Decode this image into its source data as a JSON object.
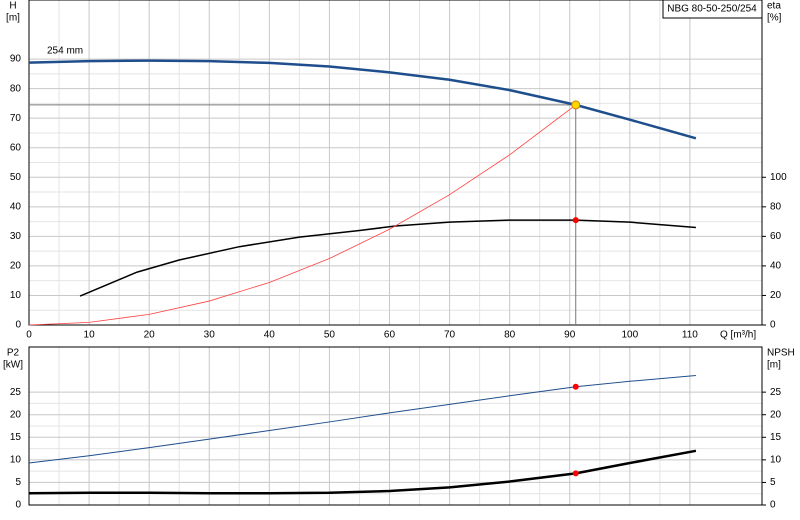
{
  "chart_data": [
    {
      "type": "line",
      "title": "NBG 80-50-250/254",
      "annotation": "254 mm",
      "xlabel": "Q [m³/h]",
      "ylabel": "H",
      "yunit": "[m]",
      "y2label": "eta",
      "y2unit": "[%]",
      "xlim": [
        0,
        122
      ],
      "xticks": [
        0,
        10,
        20,
        30,
        40,
        50,
        60,
        70,
        80,
        90,
        100,
        110
      ],
      "ylim": [
        0,
        110
      ],
      "yticks": [
        0,
        10,
        20,
        30,
        40,
        50,
        60,
        70,
        80,
        90
      ],
      "y2lim": [
        0,
        220
      ],
      "y2ticks": [
        0,
        20,
        40,
        60,
        80,
        100
      ],
      "grid": true,
      "crosshair": true,
      "series": [
        {
          "color": "#1f4e8c",
          "axis": "y",
          "x": [
            0,
            10,
            20,
            30,
            40,
            50,
            60,
            70,
            80,
            91,
            100,
            111
          ],
          "values": [
            88.8,
            89.3,
            89.5,
            89.3,
            88.7,
            87.5,
            85.5,
            83,
            79.5,
            74.5,
            69.5,
            63.2
          ]
        },
        {
          "color": "#000000",
          "axis": "y2",
          "x": [
            8.5,
            18,
            25,
            35,
            45,
            55,
            61,
            70,
            80,
            91,
            100,
            111
          ],
          "values": [
            19.6,
            35.8,
            44,
            53,
            59.5,
            64,
            67,
            69.6,
            71,
            71,
            69.6,
            66
          ]
        },
        {
          "color": "#ff4040",
          "axis": "y",
          "x": [
            0,
            10,
            20,
            30,
            40,
            50,
            60,
            70,
            80,
            91
          ],
          "values": [
            0,
            0.9,
            3.6,
            8.1,
            14.4,
            22.5,
            32.4,
            44.1,
            57.6,
            74.5
          ]
        }
      ],
      "points": [
        {
          "x": 91,
          "value": 74.5,
          "color": "#ffd700",
          "axis": "y"
        },
        {
          "x": 91,
          "value": 71,
          "color": "#ff0000",
          "axis": "y2"
        }
      ]
    },
    {
      "type": "line",
      "ylabel": "P2",
      "yunit": "[kW]",
      "y2label": "NPSH",
      "y2unit": "[m]",
      "xlim": [
        0,
        122
      ],
      "xticks": [
        0,
        10,
        20,
        30,
        40,
        50,
        60,
        70,
        80,
        90,
        100,
        110
      ],
      "ylim": [
        0,
        35
      ],
      "yticks": [
        0,
        5,
        10,
        15,
        20,
        25
      ],
      "y2lim": [
        0,
        35
      ],
      "y2ticks": [
        0,
        5,
        10,
        15,
        20,
        25
      ],
      "grid": true,
      "series": [
        {
          "color": "#000000",
          "axis": "y",
          "x": [
            0,
            10,
            20,
            30,
            40,
            50,
            60,
            70,
            80,
            91,
            100,
            111
          ],
          "values": [
            2.6,
            2.7,
            2.7,
            2.6,
            2.6,
            2.7,
            3.1,
            3.9,
            5.2,
            7.0,
            9.3,
            12.0
          ]
        },
        {
          "color": "#1f4e8c",
          "axis": "y2",
          "x": [
            0,
            10,
            20,
            30,
            40,
            50,
            60,
            70,
            80,
            91,
            100,
            111
          ],
          "values": [
            9.3,
            10.9,
            12.7,
            14.6,
            16.5,
            18.4,
            20.4,
            22.3,
            24.2,
            26.2,
            27.4,
            28.7
          ]
        }
      ],
      "points": [
        {
          "x": 91,
          "value": 7.0,
          "color": "#ff0000",
          "axis": "y"
        },
        {
          "x": 91,
          "value": 26.2,
          "color": "#ff0000",
          "axis": "y2"
        }
      ]
    }
  ]
}
